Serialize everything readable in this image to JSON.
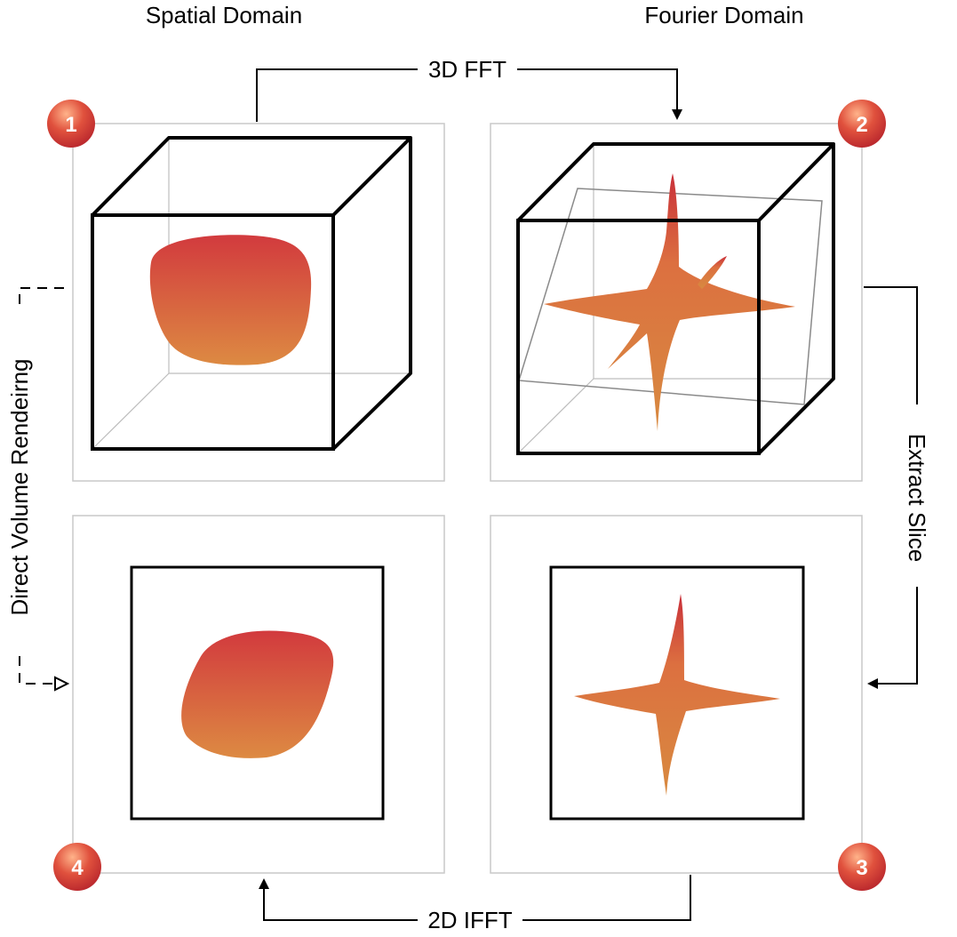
{
  "headers": {
    "spatial": "Spatial Domain",
    "fourier": "Fourier Domain"
  },
  "steps": {
    "step1": "1",
    "step2": "2",
    "step3": "3",
    "step4": "4"
  },
  "edges": {
    "fft3d": "3D FFT",
    "extract_slice": "Extract  Slice",
    "ifft2d": "2D IFFT",
    "direct_volume_rendering": "Direct Volume Rendeirng"
  },
  "colors": {
    "shape_top": "#d23a3e",
    "shape_bottom": "#dd8a42",
    "badge": "#c42a2a",
    "panel_border": "#c8c8c8"
  }
}
